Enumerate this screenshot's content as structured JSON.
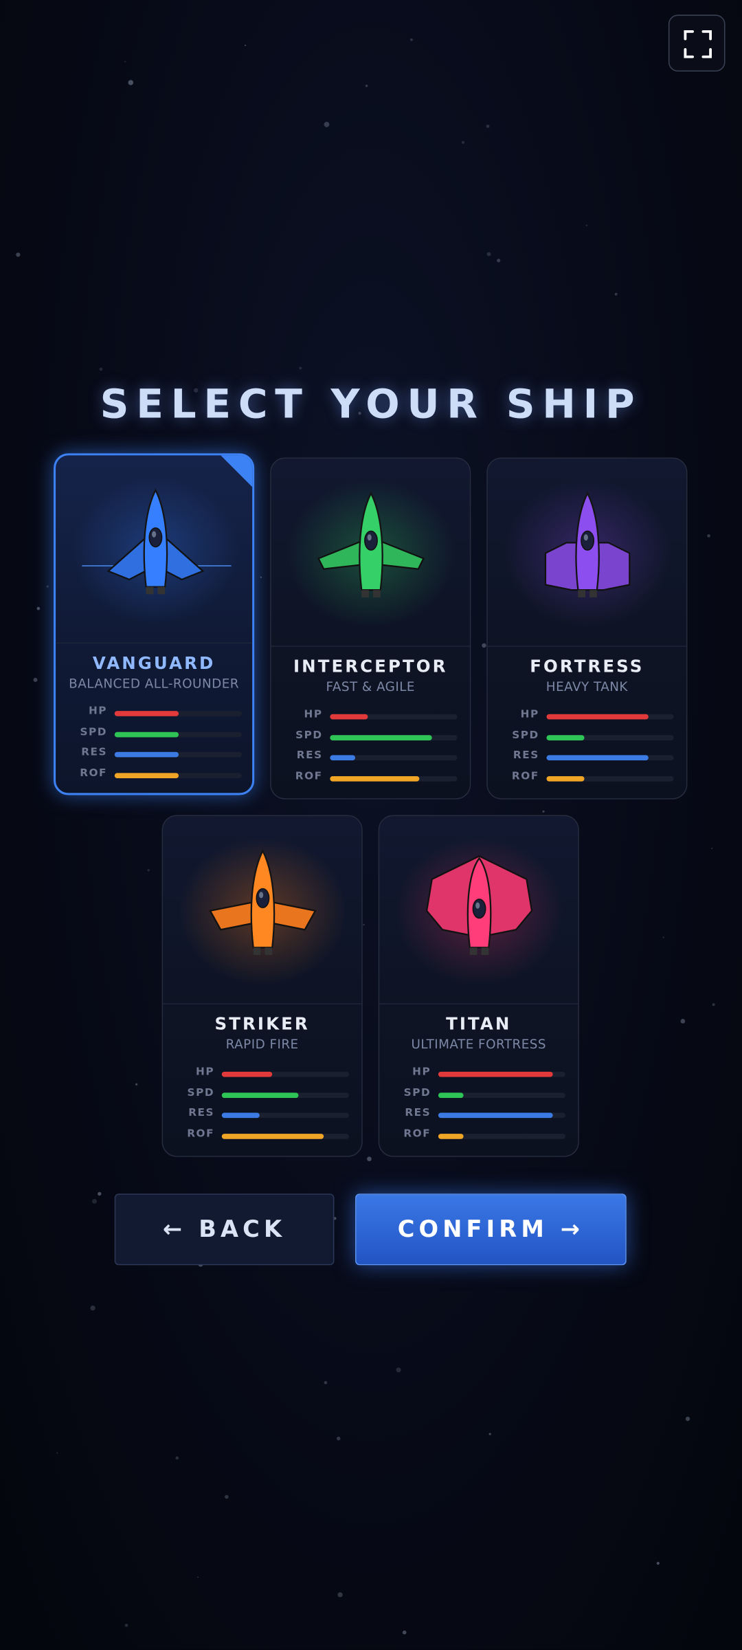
{
  "header": {
    "title": "SELECT YOUR SHIP"
  },
  "selected": 0,
  "stat_colors": [
    "#e23a3a",
    "#2fc556",
    "#3b7be3",
    "#f0a526"
  ],
  "ships": [
    {
      "name": "VANGUARD",
      "subtitle": "BALANCED ALL-ROUNDER",
      "color": "#2f6fe0",
      "stats": [
        {
          "label": "HP",
          "value": 50
        },
        {
          "label": "SPD",
          "value": 50
        },
        {
          "label": "RES",
          "value": 50
        },
        {
          "label": "ROF",
          "value": 50
        }
      ]
    },
    {
      "name": "INTERCEPTOR",
      "subtitle": "FAST & AGILE",
      "color": "#2fb55a",
      "stats": [
        {
          "label": "HP",
          "value": 30
        },
        {
          "label": "SPD",
          "value": 80
        },
        {
          "label": "RES",
          "value": 20
        },
        {
          "label": "ROF",
          "value": 70
        }
      ]
    },
    {
      "name": "FORTRESS",
      "subtitle": "HEAVY TANK",
      "color": "#7a44cf",
      "stats": [
        {
          "label": "HP",
          "value": 80
        },
        {
          "label": "SPD",
          "value": 30
        },
        {
          "label": "RES",
          "value": 80
        },
        {
          "label": "ROF",
          "value": 30
        }
      ]
    },
    {
      "name": "STRIKER",
      "subtitle": "RAPID FIRE",
      "color": "#e9761e",
      "stats": [
        {
          "label": "HP",
          "value": 40
        },
        {
          "label": "SPD",
          "value": 60
        },
        {
          "label": "RES",
          "value": 30
        },
        {
          "label": "ROF",
          "value": 80
        }
      ]
    },
    {
      "name": "TITAN",
      "subtitle": "ULTIMATE FORTRESS",
      "color": "#e0356a",
      "stats": [
        {
          "label": "HP",
          "value": 90
        },
        {
          "label": "SPD",
          "value": 20
        },
        {
          "label": "RES",
          "value": 90
        },
        {
          "label": "ROF",
          "value": 20
        }
      ]
    }
  ],
  "buttons": {
    "back": "← BACK",
    "confirm": "CONFIRM →"
  }
}
